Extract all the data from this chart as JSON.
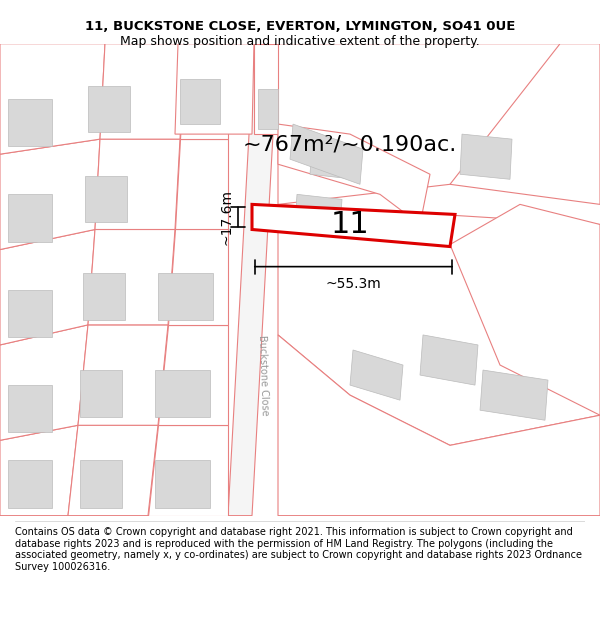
{
  "title_line1": "11, BUCKSTONE CLOSE, EVERTON, LYMINGTON, SO41 0UE",
  "title_line2": "Map shows position and indicative extent of the property.",
  "area_text": "~767m²/~0.190ac.",
  "label_number": "11",
  "dim_width": "~55.3m",
  "dim_height": "~17.6m",
  "road_label": "Buckstone Close",
  "footer_text": "Contains OS data © Crown copyright and database right 2021. This information is subject to Crown copyright and database rights 2023 and is reproduced with the permission of HM Land Registry. The polygons (including the associated geometry, namely x, y co-ordinates) are subject to Crown copyright and database rights 2023 Ordnance Survey 100026316.",
  "bg_color": "#ffffff",
  "map_bg": "#ffffff",
  "building_fill": "#d8d8d8",
  "building_edge": "#bbbbbb",
  "highlight_color": "#dd0000",
  "road_line_color": "#e88080",
  "title_fontsize": 9.5,
  "footer_fontsize": 7.0,
  "area_fontsize": 16,
  "number_fontsize": 22,
  "dim_fontsize": 10,
  "road_label_fontsize": 7
}
